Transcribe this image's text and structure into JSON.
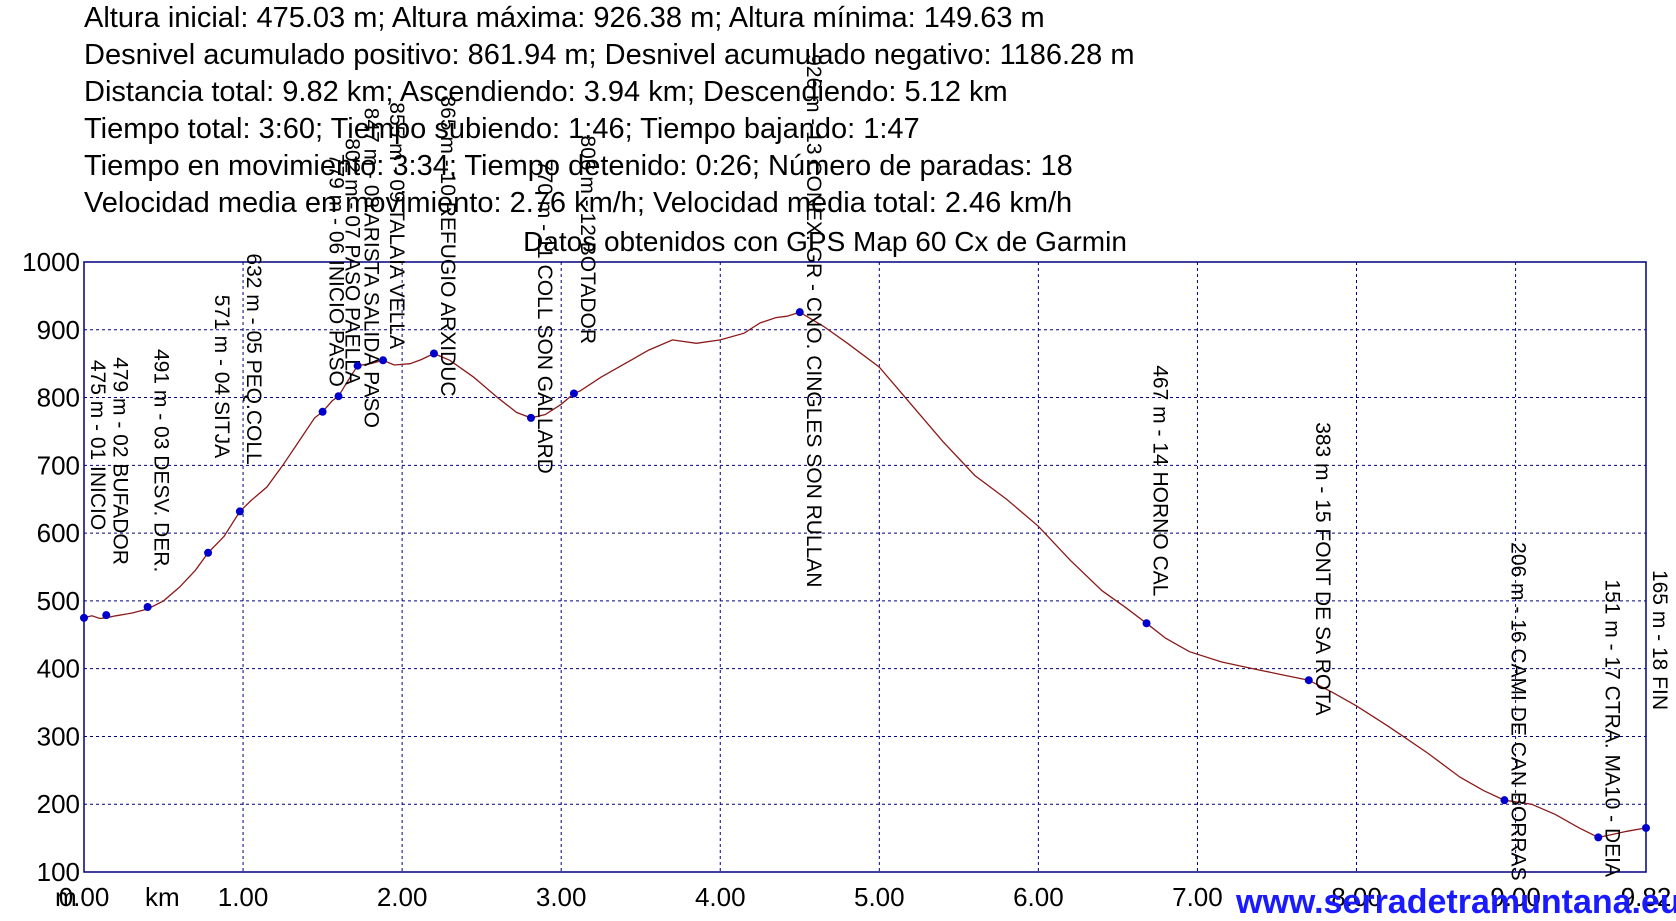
{
  "stats": [
    "Altura inicial: 475.03 m; Altura máxima: 926.38 m; Altura mínima: 149.63 m",
    "Desnivel acumulado positivo: 861.94 m; Desnivel acumulado negativo: 1186.28 m",
    "Distancia total: 9.82 km; Ascendiendo: 3.94 km; Descendiendo: 5.12 km",
    "Tiempo total: 3:60; Tiempo subiendo: 1:46; Tiempo bajando: 1:47",
    "Tiempo en movimiento: 3:34; Tiempo detenido: 0:26; Número de paradas: 18",
    "Velocidad media en movimiento: 2.76 km/h; Velocidad media total: 2.46 km/h"
  ],
  "watermark": "www.serradetramuntana.eu",
  "colors": {
    "profile": "#8b1a1a",
    "waypoint": "#0000cc",
    "grid": "#000080",
    "frame": "#000080",
    "watermark": "#1a1aff"
  },
  "chart_data": {
    "type": "line",
    "title": "Datos obtenidos con GPS Map 60 Cx de Garmin",
    "y_unit": "m",
    "x_unit": "km",
    "xlim": [
      0,
      9.82
    ],
    "ylim": [
      100,
      1000
    ],
    "x_ticks": [
      {
        "value": 0,
        "label": "0.00"
      },
      {
        "value": 1,
        "label": "1.00"
      },
      {
        "value": 2,
        "label": "2.00"
      },
      {
        "value": 3,
        "label": "3.00"
      },
      {
        "value": 4,
        "label": "4.00"
      },
      {
        "value": 5,
        "label": "5.00"
      },
      {
        "value": 6,
        "label": "6.00"
      },
      {
        "value": 7,
        "label": "7.00"
      },
      {
        "value": 8,
        "label": "8.00"
      },
      {
        "value": 9,
        "label": "9.00"
      },
      {
        "value": 9.82,
        "label": "9.82"
      }
    ],
    "y_ticks": [
      {
        "value": 100,
        "label": "100"
      },
      {
        "value": 200,
        "label": "200"
      },
      {
        "value": 300,
        "label": "300"
      },
      {
        "value": 400,
        "label": "400"
      },
      {
        "value": 500,
        "label": "500"
      },
      {
        "value": 600,
        "label": "600"
      },
      {
        "value": 700,
        "label": "700"
      },
      {
        "value": 800,
        "label": "800"
      },
      {
        "value": 900,
        "label": "900"
      },
      {
        "value": 1000,
        "label": "1000"
      }
    ],
    "grid": true,
    "profile": [
      [
        0.0,
        475
      ],
      [
        0.05,
        478
      ],
      [
        0.1,
        474
      ],
      [
        0.14,
        475
      ],
      [
        0.2,
        478
      ],
      [
        0.3,
        482
      ],
      [
        0.4,
        488
      ],
      [
        0.5,
        500
      ],
      [
        0.6,
        520
      ],
      [
        0.7,
        545
      ],
      [
        0.78,
        571
      ],
      [
        0.88,
        595
      ],
      [
        0.98,
        632
      ],
      [
        1.05,
        648
      ],
      [
        1.15,
        668
      ],
      [
        1.25,
        700
      ],
      [
        1.35,
        735
      ],
      [
        1.45,
        770
      ],
      [
        1.5,
        779
      ],
      [
        1.56,
        795
      ],
      [
        1.6,
        802
      ],
      [
        1.66,
        825
      ],
      [
        1.72,
        847
      ],
      [
        1.8,
        850
      ],
      [
        1.88,
        855
      ],
      [
        1.95,
        848
      ],
      [
        2.05,
        850
      ],
      [
        2.12,
        856
      ],
      [
        2.2,
        865
      ],
      [
        2.3,
        855
      ],
      [
        2.45,
        830
      ],
      [
        2.6,
        800
      ],
      [
        2.72,
        778
      ],
      [
        2.81,
        770
      ],
      [
        2.9,
        775
      ],
      [
        3.0,
        790
      ],
      [
        3.08,
        806
      ],
      [
        3.12,
        810
      ],
      [
        3.25,
        830
      ],
      [
        3.4,
        850
      ],
      [
        3.55,
        870
      ],
      [
        3.7,
        885
      ],
      [
        3.85,
        880
      ],
      [
        4.0,
        885
      ],
      [
        4.15,
        895
      ],
      [
        4.25,
        910
      ],
      [
        4.35,
        918
      ],
      [
        4.42,
        920
      ],
      [
        4.5,
        926
      ],
      [
        4.65,
        905
      ],
      [
        4.8,
        880
      ],
      [
        5.0,
        845
      ],
      [
        5.2,
        790
      ],
      [
        5.4,
        735
      ],
      [
        5.6,
        685
      ],
      [
        5.8,
        650
      ],
      [
        6.0,
        610
      ],
      [
        6.2,
        560
      ],
      [
        6.4,
        515
      ],
      [
        6.55,
        490
      ],
      [
        6.68,
        467
      ],
      [
        6.8,
        445
      ],
      [
        6.95,
        425
      ],
      [
        7.15,
        410
      ],
      [
        7.35,
        400
      ],
      [
        7.55,
        390
      ],
      [
        7.7,
        383
      ],
      [
        7.85,
        365
      ],
      [
        8.0,
        345
      ],
      [
        8.2,
        315
      ],
      [
        8.45,
        275
      ],
      [
        8.65,
        240
      ],
      [
        8.8,
        220
      ],
      [
        8.93,
        206
      ],
      [
        9.1,
        200
      ],
      [
        9.25,
        185
      ],
      [
        9.4,
        165
      ],
      [
        9.52,
        151
      ],
      [
        9.6,
        155
      ],
      [
        9.7,
        160
      ],
      [
        9.82,
        165
      ]
    ],
    "waypoints": [
      {
        "x": 0.0,
        "y": 475,
        "label": "475 m - 01 INICIO"
      },
      {
        "x": 0.14,
        "y": 479,
        "label": "479 m - 02 BUFADOR"
      },
      {
        "x": 0.4,
        "y": 491,
        "label": "491 m - 03 DESV. DER."
      },
      {
        "x": 0.78,
        "y": 571,
        "label": "571 m - 04 SITJA"
      },
      {
        "x": 0.98,
        "y": 632,
        "label": "632 m - 05 PEQ.COLL"
      },
      {
        "x": 1.5,
        "y": 779,
        "label": "779 m - 06 INICIO PASO"
      },
      {
        "x": 1.6,
        "y": 802,
        "label": "802 m - 07 PASO PAELLA"
      },
      {
        "x": 1.72,
        "y": 847,
        "label": "847 m - 08 ARISTA SALIDA PASO"
      },
      {
        "x": 1.88,
        "y": 855,
        "label": "855 m - 09 TALAIA VELLA"
      },
      {
        "x": 2.2,
        "y": 865,
        "label": "865 m - 10 REFUGIO ARXIDUC"
      },
      {
        "x": 2.81,
        "y": 770,
        "label": "770 m - 11 COLL SON GALLARD"
      },
      {
        "x": 3.08,
        "y": 806,
        "label": "806 m - 12 BOTADOR"
      },
      {
        "x": 4.5,
        "y": 926,
        "label": "926 m - 13 CONEX. GR - CNO. CINGLES SON RULLAN"
      },
      {
        "x": 6.68,
        "y": 467,
        "label": "467 m - 14 HORNO CAL"
      },
      {
        "x": 7.7,
        "y": 383,
        "label": "383 m - 15 FONT DE SA ROTA"
      },
      {
        "x": 8.93,
        "y": 206,
        "label": "206 m - 16 CAMI DE CAN BORRAS"
      },
      {
        "x": 9.52,
        "y": 151,
        "label": "151 m - 17 CTRA. MA10 - DEIA"
      },
      {
        "x": 9.82,
        "y": 165,
        "label": "165 m - 18 FIN"
      }
    ]
  }
}
